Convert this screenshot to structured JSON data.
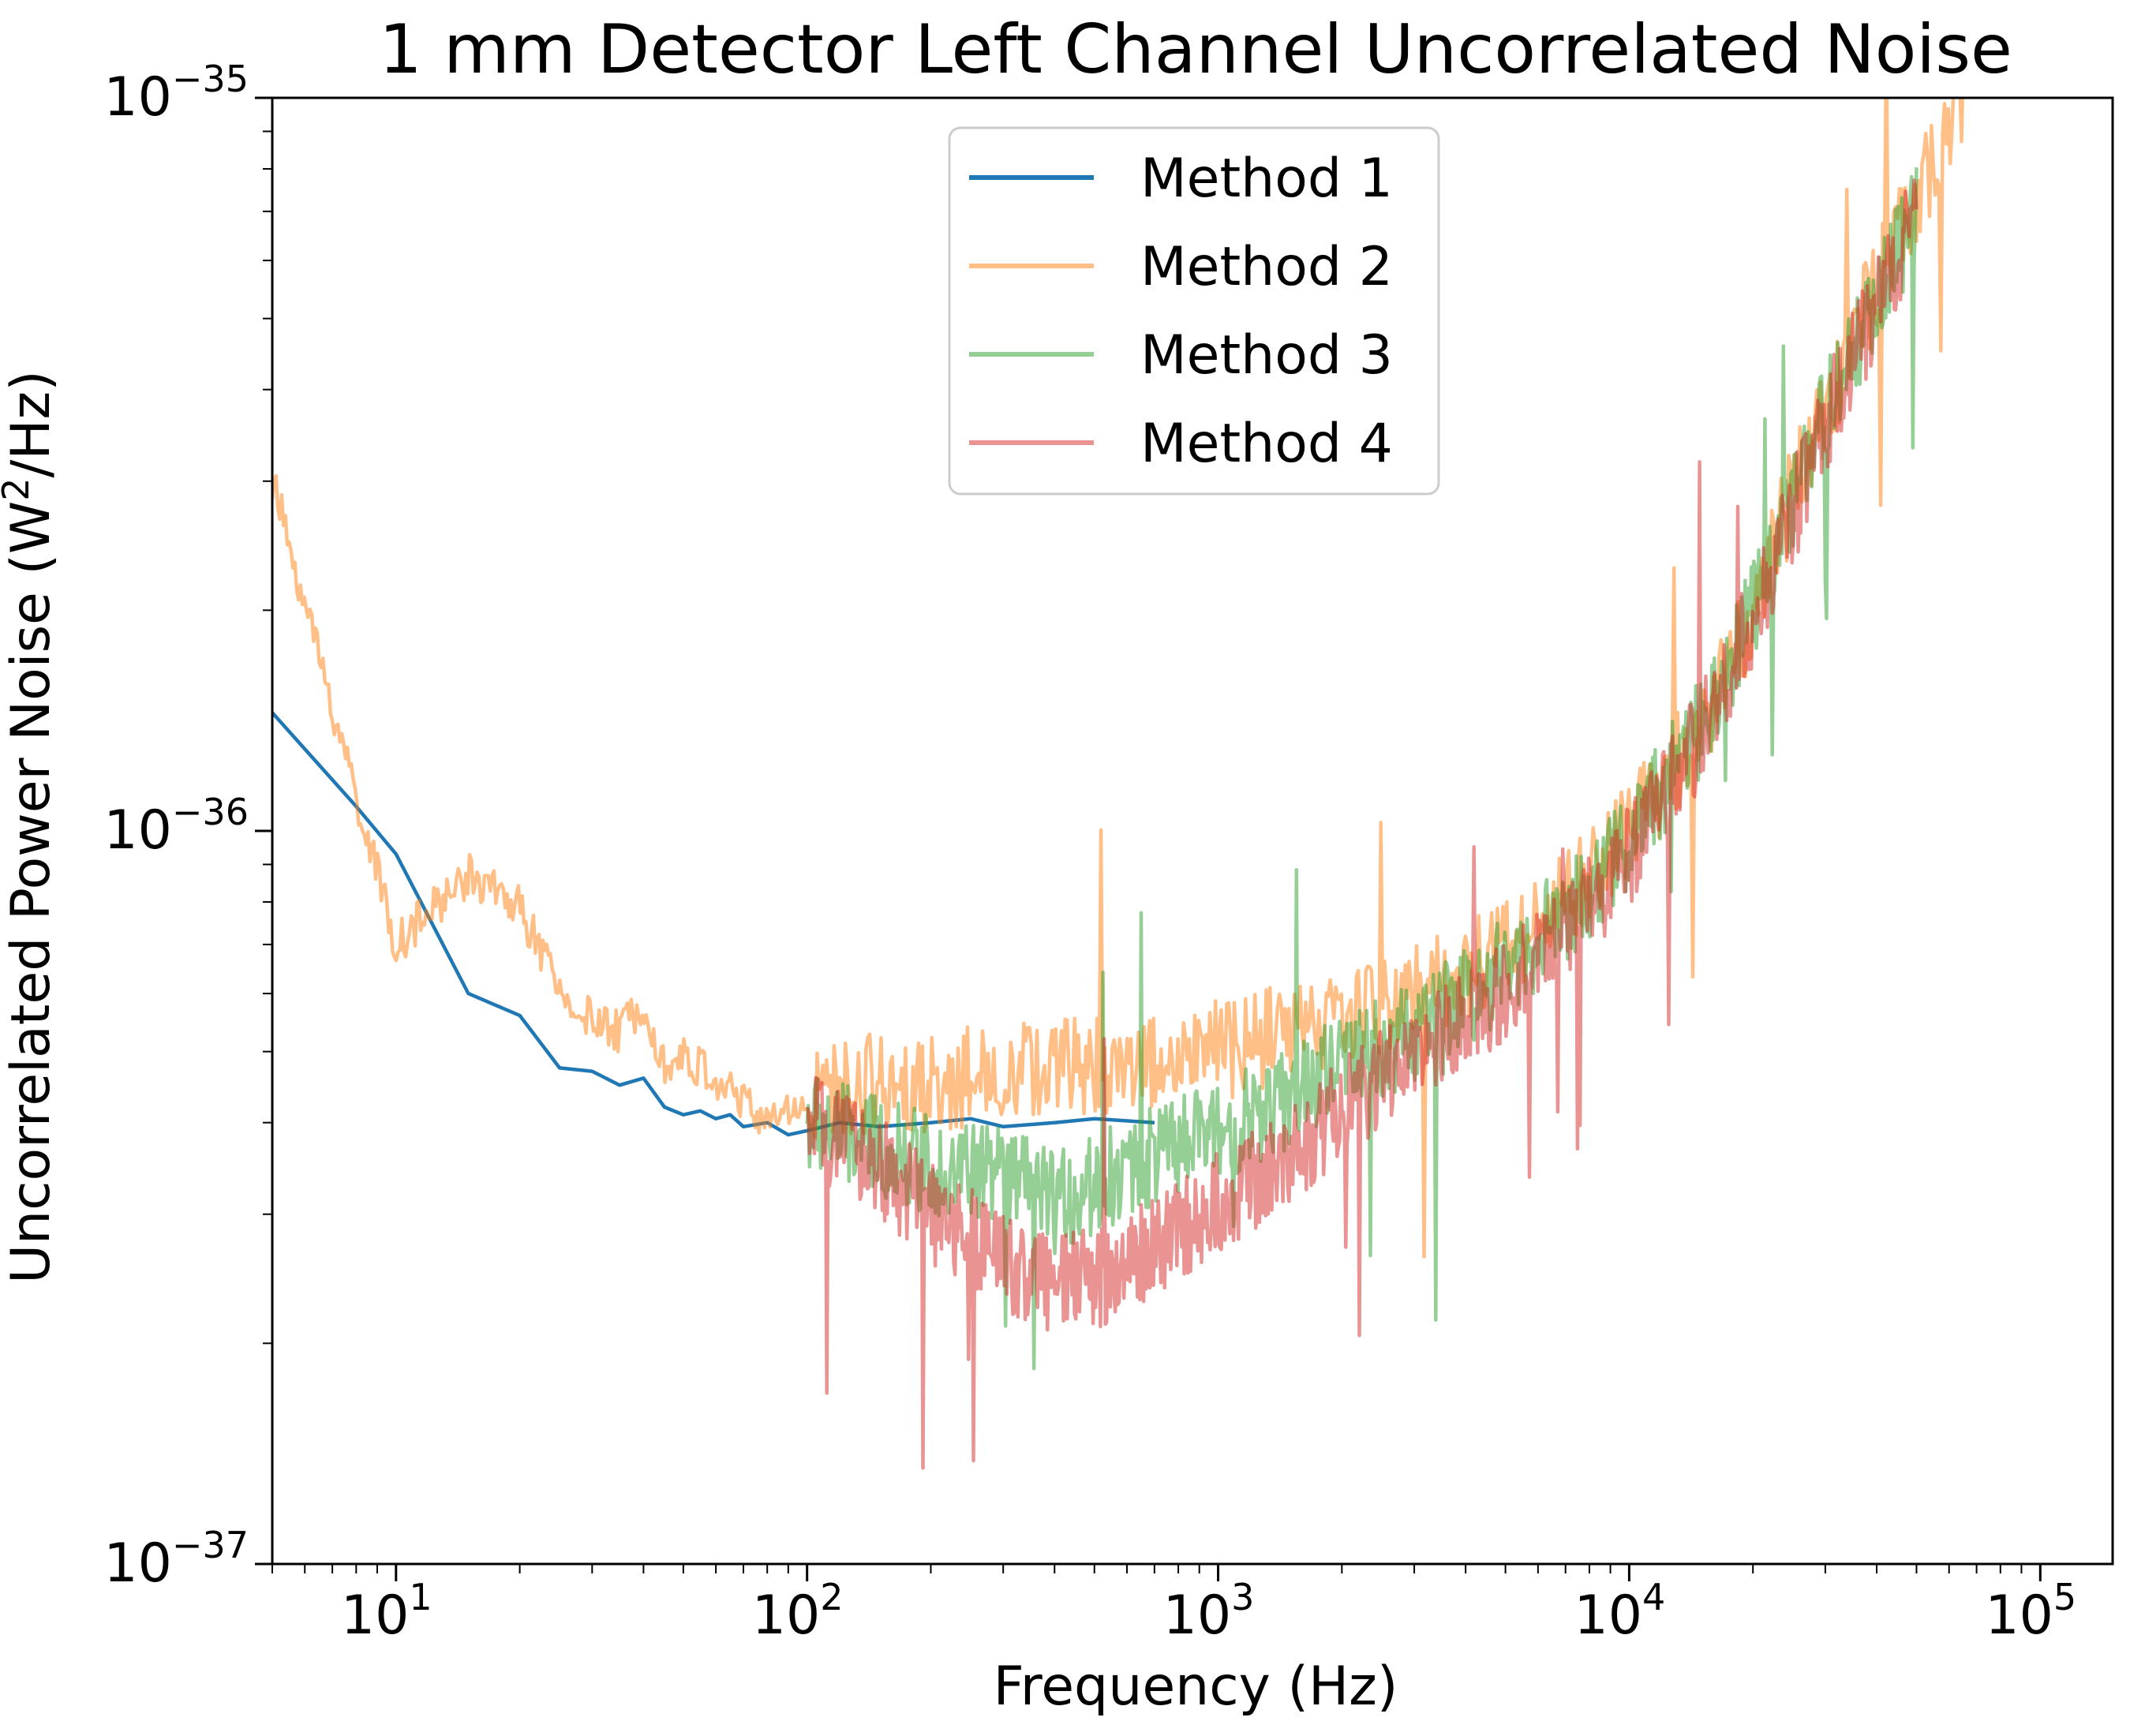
{
  "chart_data": {
    "type": "line",
    "title": "1 mm Detector Left Channel Uncorrelated Noise",
    "xlabel": "Frequency (Hz)",
    "ylabel": {
      "prefix": "Uncorrelated Power Noise (W",
      "sup": "2",
      "suffix": "/Hz)"
    },
    "xscale": "log",
    "yscale": "log",
    "xlim": [
      5,
      150000
    ],
    "ylim": [
      1e-37,
      1e-35
    ],
    "x_ticks": [
      {
        "value": 10,
        "base": "10",
        "exp": "1"
      },
      {
        "value": 100,
        "base": "10",
        "exp": "2"
      },
      {
        "value": 1000,
        "base": "10",
        "exp": "3"
      },
      {
        "value": 10000,
        "base": "10",
        "exp": "4"
      },
      {
        "value": 100000,
        "base": "10",
        "exp": "5"
      }
    ],
    "y_ticks": [
      {
        "value": 1e-37,
        "base": "10",
        "exp": "−37"
      },
      {
        "value": 1e-36,
        "base": "10",
        "exp": "−36"
      },
      {
        "value": 1e-35,
        "base": "10",
        "exp": "−35"
      }
    ],
    "legend_position": "upper-center",
    "series": [
      {
        "name": "Method 1",
        "color": "#1f77b4",
        "opacity": 1.0,
        "x": [
          5,
          8,
          10,
          15,
          20,
          25,
          30,
          35,
          40,
          45,
          50,
          55,
          60,
          65,
          70,
          80,
          90,
          100,
          120,
          150,
          200,
          250,
          300,
          400,
          500,
          700
        ],
        "y": [
          1.45e-36,
          1.08e-36,
          9.3e-37,
          6e-37,
          5.6e-37,
          4.75e-37,
          4.7e-37,
          4.5e-37,
          4.6e-37,
          4.2e-37,
          4.1e-37,
          4.15e-37,
          4.05e-37,
          4.1e-37,
          3.95e-37,
          4e-37,
          3.85e-37,
          3.9e-37,
          4e-37,
          3.95e-37,
          4e-37,
          4.05e-37,
          3.95e-37,
          4e-37,
          4.05e-37,
          4e-37
        ]
      },
      {
        "name": "Method 2",
        "color": "#ff7f0e",
        "opacity": 0.5,
        "x": [
          5,
          10,
          15,
          20,
          25,
          30,
          35,
          40,
          45,
          50,
          60,
          80,
          100,
          120,
          150,
          200,
          300,
          500,
          700,
          1000,
          1500,
          2000,
          3000,
          4000,
          5000,
          7000,
          10000,
          15000,
          20000,
          25000,
          30000,
          40000,
          50000,
          60000,
          65000
        ],
        "y": [
          3e-36,
          7e-37,
          8.7e-37,
          7.9e-37,
          6e-37,
          5.5e-37,
          5.3e-37,
          5.9e-37,
          4.8e-37,
          4.9e-37,
          4.6e-37,
          4e-37,
          4.3e-37,
          4.4e-37,
          4.6e-37,
          4.5e-37,
          4.7e-37,
          4.8e-37,
          4.85e-37,
          5e-37,
          5.3e-37,
          5.6e-37,
          6e-37,
          6.5e-37,
          7e-37,
          8e-37,
          1e-36,
          1.4e-36,
          2e-36,
          2.9e-36,
          3.8e-36,
          5.6e-36,
          7.2e-36,
          9e-36,
          1e-35
        ]
      },
      {
        "name": "Method 3",
        "color": "#2ca02c",
        "opacity": 0.5,
        "x": [
          100,
          150,
          200,
          300,
          400,
          500,
          700,
          1000,
          1500,
          2000,
          3000,
          5000,
          7000,
          10000,
          15000,
          20000,
          30000,
          50000
        ],
        "y": [
          4e-37,
          3.7e-37,
          3.5e-37,
          3.4e-37,
          3.1e-37,
          3.3e-37,
          3.6e-37,
          3.9e-37,
          4.3e-37,
          4.8e-37,
          5.3e-37,
          6.5e-37,
          7.7e-37,
          9.6e-37,
          1.4e-36,
          2e-36,
          3.7e-36,
          7e-36
        ]
      },
      {
        "name": "Method 4",
        "color": "#d62728",
        "opacity": 0.5,
        "x": [
          100,
          150,
          200,
          300,
          400,
          500,
          700,
          1000,
          1500,
          2000,
          3000,
          5000,
          7000,
          10000,
          15000,
          20000,
          30000,
          50000
        ],
        "y": [
          4e-37,
          3.5e-37,
          3e-37,
          2.6e-37,
          2.4e-37,
          2.45e-37,
          2.7e-37,
          3.1e-37,
          3.6e-37,
          4.2e-37,
          4.9e-37,
          6e-37,
          7.3e-37,
          9.2e-37,
          1.35e-36,
          1.95e-36,
          3.6e-36,
          6.9e-36
        ]
      }
    ]
  }
}
